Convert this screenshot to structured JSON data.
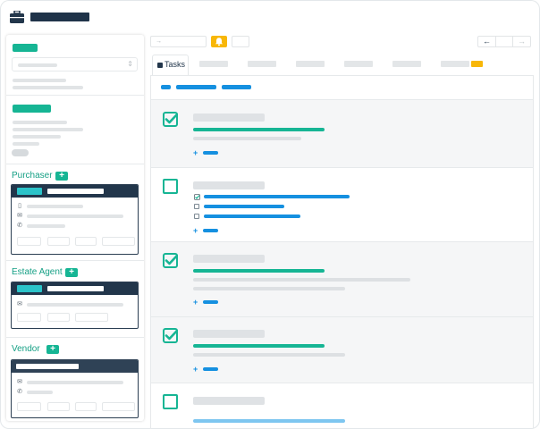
{
  "colors": {
    "accent_green": "#16b594",
    "accent_blue": "#1590e0",
    "navy": "#22364b",
    "warning_yellow": "#f8b708"
  },
  "header": {
    "icon": "briefcase-icon"
  },
  "sidebar": {
    "groups": [
      {
        "label": "Purchaser",
        "add_label": "+"
      },
      {
        "label": "Estate Agent",
        "add_label": "+"
      },
      {
        "label": "Vendor",
        "add_label": "+"
      }
    ],
    "select_chevron": "⇕"
  },
  "toolbar": {
    "search_arrow": "→",
    "notification_icon": "bell-icon",
    "prev_arrow": "←",
    "next_arrow": "→"
  },
  "tabs": {
    "active": {
      "label": "Tasks",
      "icon": "checkbox-icon"
    }
  },
  "tasks": [
    {
      "state": "complete",
      "add_label": "+"
    },
    {
      "state": "open",
      "add_label": "+"
    },
    {
      "state": "complete",
      "add_label": "+"
    },
    {
      "state": "complete",
      "add_label": "+"
    },
    {
      "state": "open"
    }
  ]
}
